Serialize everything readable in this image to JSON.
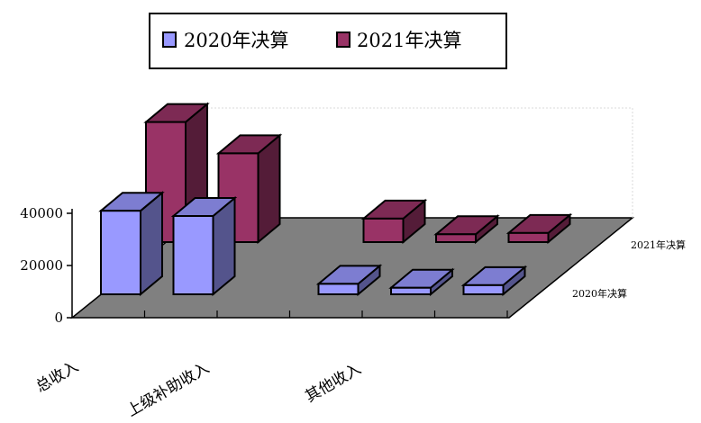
{
  "chart_data": {
    "type": "bar",
    "categories": [
      "总收入",
      "上级补助收入",
      "",
      "其他收入",
      "",
      ""
    ],
    "series": [
      {
        "name": "2020年决算",
        "values": [
          32000,
          30000,
          0,
          4000,
          2500,
          3500
        ],
        "color": "#9999ff"
      },
      {
        "name": "2021年决算",
        "values": [
          46000,
          34000,
          0,
          9000,
          3000,
          3500
        ],
        "color": "#993366"
      }
    ],
    "ylim": [
      0,
      50000
    ],
    "yticks": [
      "0",
      "20000",
      "40000"
    ],
    "legend": "top",
    "grid": false,
    "floor_color": "#808080"
  }
}
